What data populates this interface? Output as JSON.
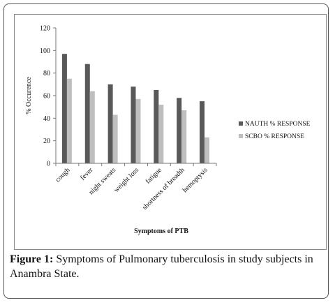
{
  "figure": {
    "label": "Figure 1:",
    "caption": "Symptoms of Pulmonary tuberculosis in study subjects in Anambra State."
  },
  "chart_data": {
    "type": "bar",
    "categories": [
      "cough",
      "fever",
      "night sweats",
      "weight loss",
      "fatigue",
      "shortness of breadth",
      "hemoptysis"
    ],
    "series": [
      {
        "name": "NAUTH % RESPONSE",
        "values": [
          97,
          88,
          70,
          68,
          65,
          58,
          55
        ],
        "color": "#595959"
      },
      {
        "name": "SCBO % RESPONSE",
        "values": [
          75,
          64,
          43,
          57,
          52,
          47,
          23
        ],
        "color": "#bfbfbf"
      }
    ],
    "xlabel": "Symptoms of PTB",
    "ylabel": "% Occurence",
    "ylim": [
      0,
      120
    ],
    "yticks": [
      "0",
      "20",
      "40",
      "60",
      "80",
      "100",
      "120"
    ],
    "legend": "right",
    "grid": false
  }
}
